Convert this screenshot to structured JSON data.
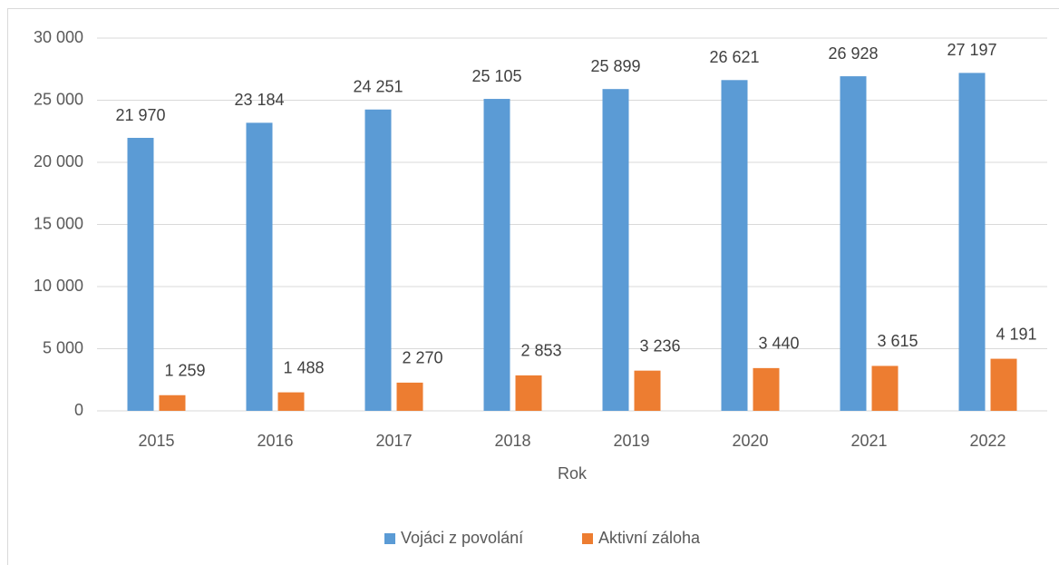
{
  "chart_data": {
    "type": "bar",
    "x_label": "Rok",
    "categories": [
      "2015",
      "2016",
      "2017",
      "2018",
      "2019",
      "2020",
      "2021",
      "2022"
    ],
    "series": [
      {
        "name": "Vojáci z povolání",
        "color": "#5b9bd5",
        "values": [
          21970,
          23184,
          24251,
          25105,
          25899,
          26621,
          26928,
          27197
        ],
        "value_labels": [
          "21 970",
          "23 184",
          "24 251",
          "25 105",
          "25 899",
          "26 621",
          "26 928",
          "27 197"
        ]
      },
      {
        "name": "Aktivní záloha",
        "color": "#ed7d31",
        "values": [
          1259,
          1488,
          2270,
          2853,
          3236,
          3440,
          3615,
          4191
        ],
        "value_labels": [
          "1 259",
          "1 488",
          "2 270",
          "2 853",
          "3 236",
          "3 440",
          "3 615",
          "4 191"
        ]
      }
    ],
    "ylim": [
      0,
      30000
    ],
    "yticks": [
      0,
      {
        "value": 5000,
        "label": "5 000"
      },
      {
        "value": 10000,
        "label": "10 000"
      },
      {
        "value": 15000,
        "label": "15 000"
      },
      {
        "value": 20000,
        "label": "20 000"
      },
      {
        "value": 25000,
        "label": "25 000"
      },
      {
        "value": 30000,
        "label": "30 000"
      }
    ],
    "grid": true,
    "legend": "bottom"
  }
}
